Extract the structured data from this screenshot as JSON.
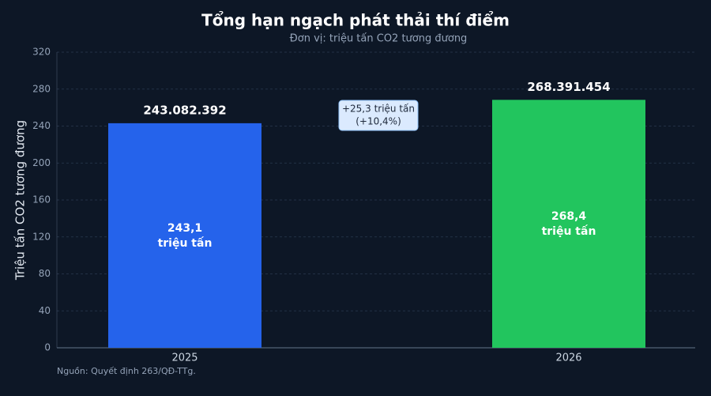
{
  "chart_data": {
    "type": "bar",
    "title": "Tổng hạn ngạch phát thải thí điểm",
    "subtitle": "Đơn vị: triệu tấn CO2 tương đương",
    "y_label": "Triệu tấn CO2 tương đương",
    "categories": [
      "2025",
      "2026"
    ],
    "values": [
      243.082392,
      268.391454
    ],
    "value_labels": [
      "243.082.392",
      "268.391.454"
    ],
    "inner_labels": [
      [
        "243,1",
        "triệu tấn"
      ],
      [
        "268,4",
        "triệu tấn"
      ]
    ],
    "colors": [
      "#2563eb",
      "#22c55e"
    ],
    "ylim": [
      0,
      320
    ],
    "yticks": [
      0,
      40,
      80,
      120,
      160,
      200,
      240,
      280,
      320
    ],
    "grid": true,
    "annotation": [
      "+25,3 triệu tấn",
      "(+10,4%)"
    ],
    "source": "Nguồn: Quyết định 263/QĐ-TTg."
  }
}
